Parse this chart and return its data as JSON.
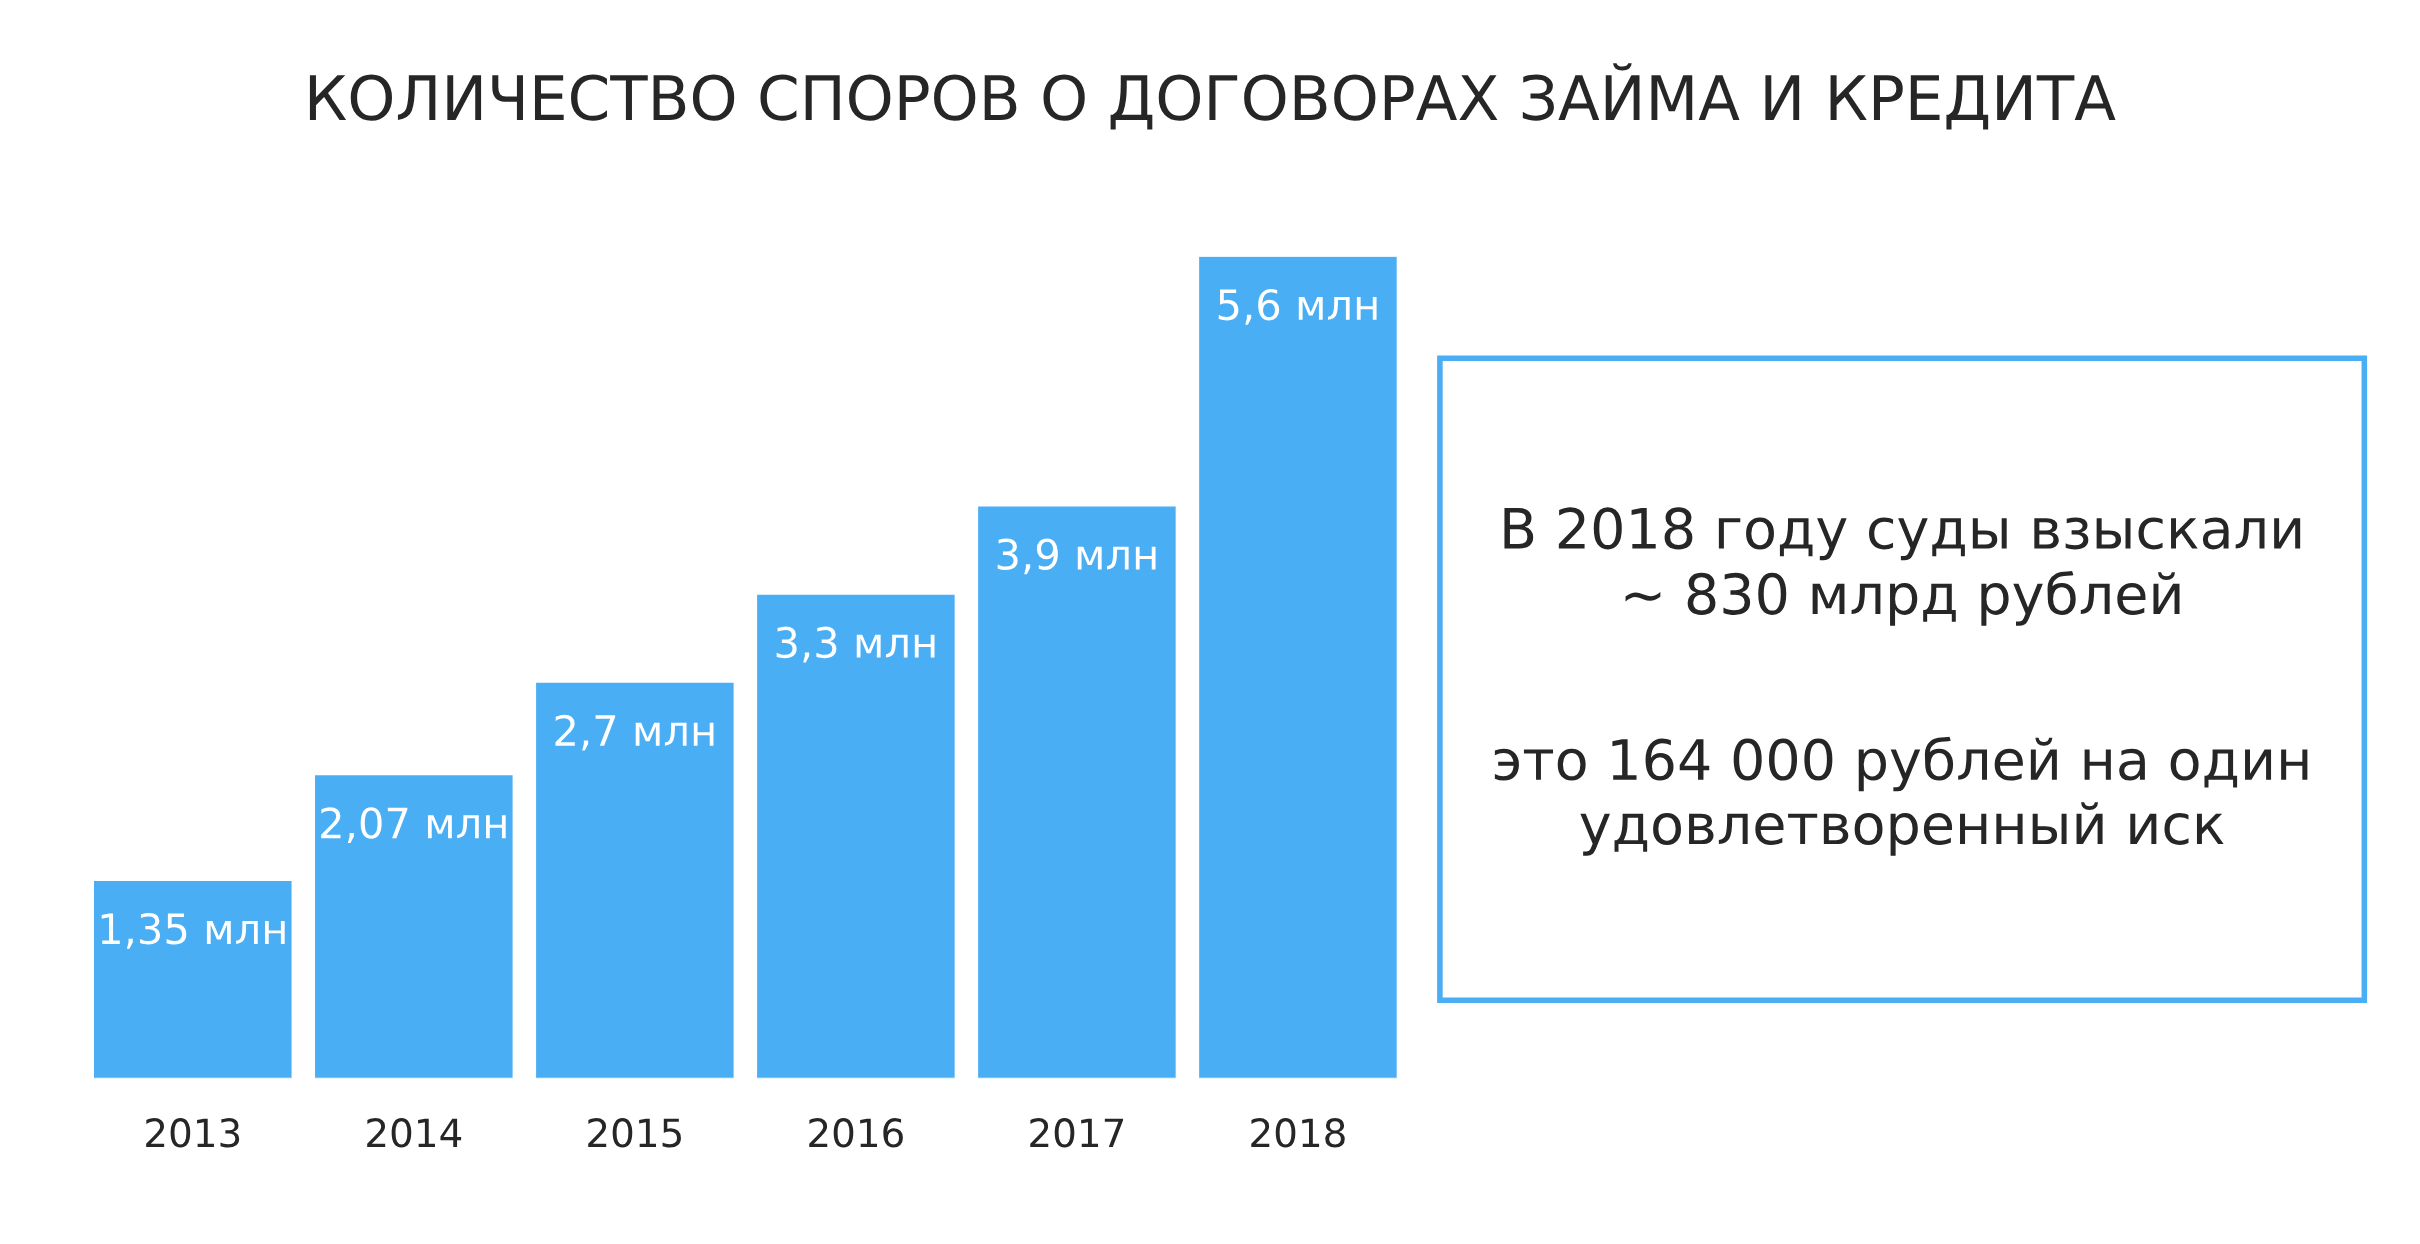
{
  "chart_data": {
    "type": "bar",
    "title": "КОЛИЧЕСТВО СПОРОВ О ДОГОВОРАХ ЗАЙМА И КРЕДИТА",
    "categories": [
      "2013",
      "2014",
      "2015",
      "2016",
      "2017",
      "2018"
    ],
    "values": [
      1.35,
      2.07,
      2.7,
      3.3,
      3.9,
      5.6
    ],
    "value_labels": [
      "1,35 млн",
      "2,07 млн",
      "2,7 млн",
      "3,3 млн",
      "3,9 млн",
      "5,6 млн"
    ],
    "color": "#4aaef5",
    "annotations": [
      "В 2018 году суды взыскали\n~ 830 млрд рублей",
      "это 164 000 рублей на один\nудовлетворенный иск"
    ]
  }
}
